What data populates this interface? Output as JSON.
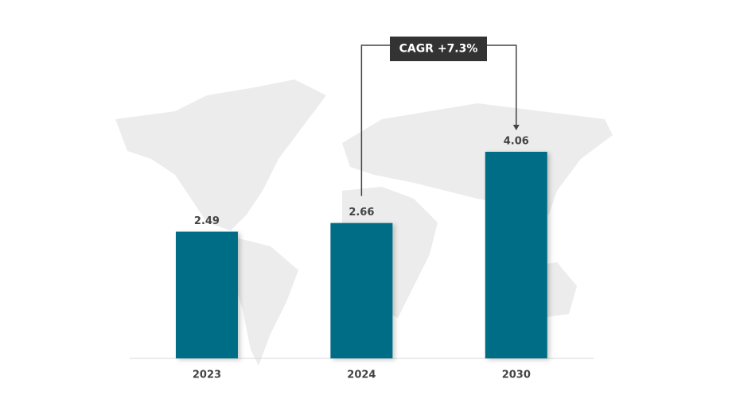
{
  "chart_data": {
    "type": "bar",
    "categories": [
      "2023",
      "2024",
      "2030"
    ],
    "values": [
      2.49,
      2.66,
      4.06
    ],
    "color": "#006d87",
    "annotation": "CAGR +7.3%"
  }
}
